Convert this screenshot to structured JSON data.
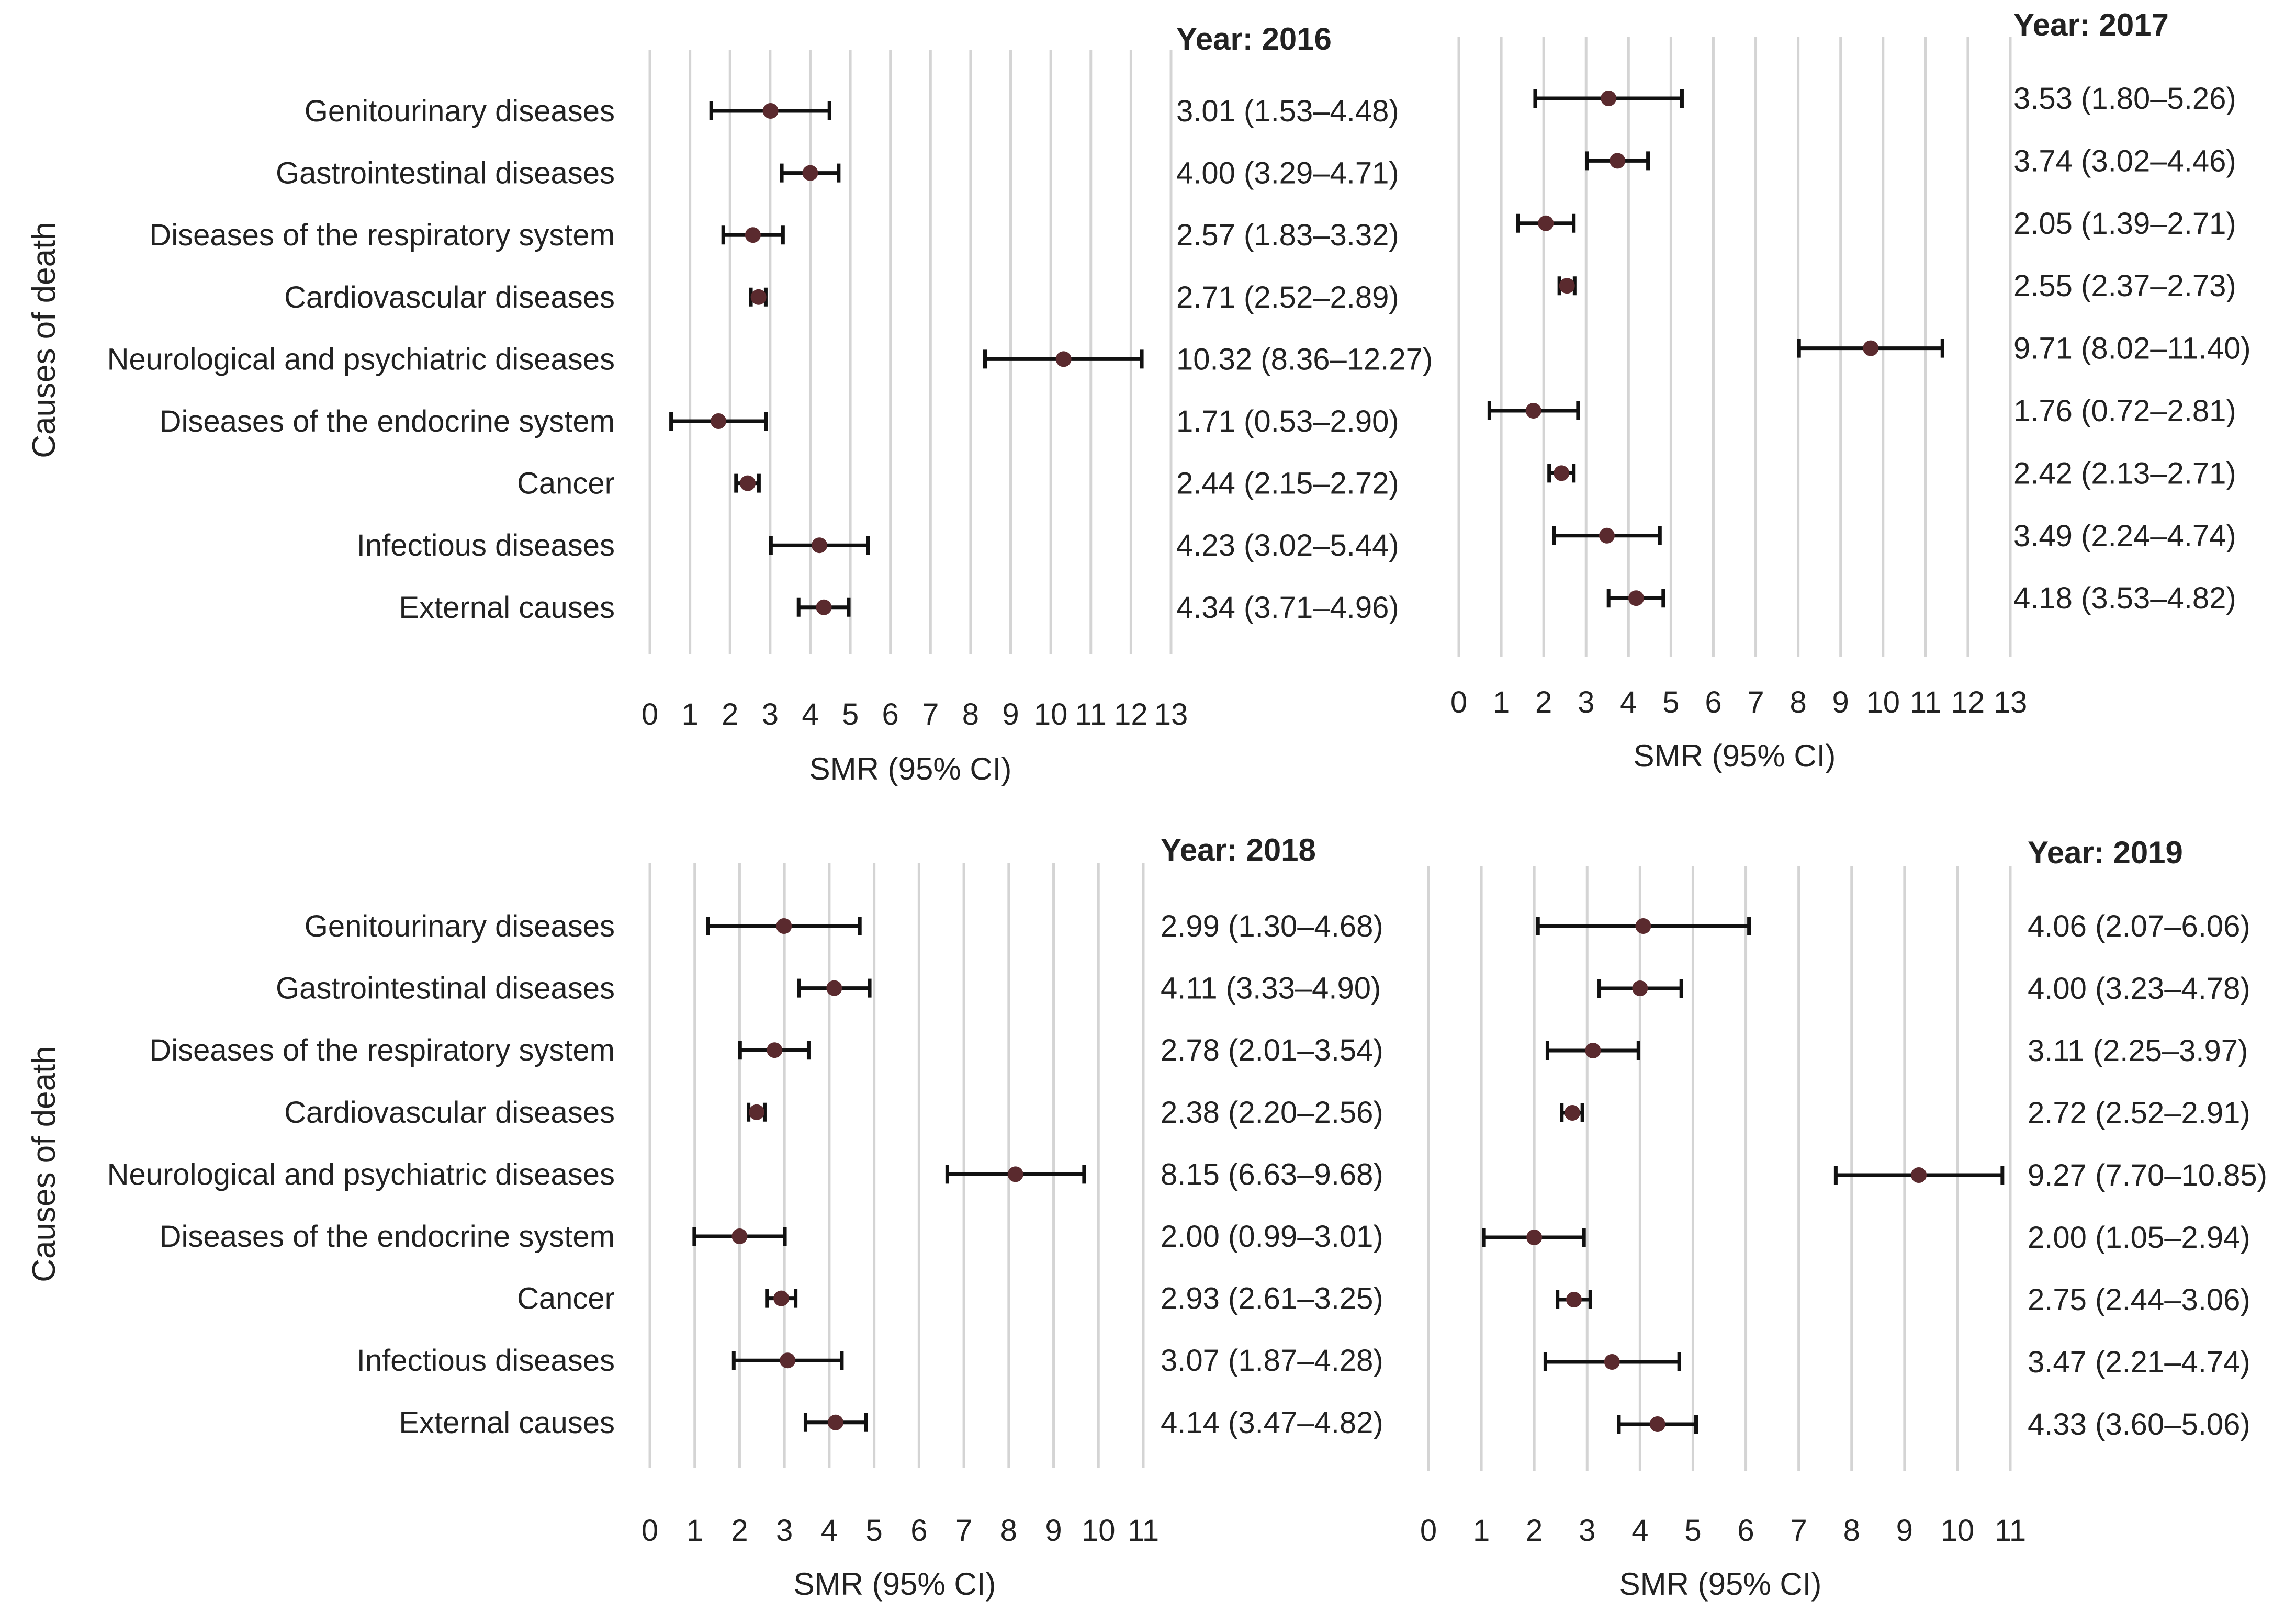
{
  "chart_data": [
    {
      "type": "forest",
      "title": "Year: 2016",
      "xlabel": "SMR (95% CI)",
      "ylabel": "Causes of death",
      "xlim": [
        0,
        13
      ],
      "xticks": [
        "0",
        "1",
        "2",
        "3",
        "4",
        "5",
        "6",
        "7",
        "8",
        "9",
        "10",
        "11",
        "12",
        "13"
      ],
      "grid": true,
      "categories": [
        "Genitourinary diseases",
        "Gastrointestinal diseases",
        "Diseases of the respiratory system",
        "Cardiovascular diseases",
        "Neurological and psychiatric diseases",
        "Diseases of the endocrine system",
        "Cancer",
        "Infectious diseases",
        "External causes"
      ],
      "smr": [
        3.01,
        4.0,
        2.57,
        2.71,
        10.32,
        1.71,
        2.44,
        4.23,
        4.34
      ],
      "lower": [
        1.53,
        3.29,
        1.83,
        2.52,
        8.36,
        0.53,
        2.15,
        3.02,
        3.71
      ],
      "upper": [
        4.48,
        4.71,
        3.32,
        2.89,
        12.27,
        2.9,
        2.72,
        5.44,
        4.96
      ],
      "labels": [
        "3.01 (1.53–4.48)",
        "4.00 (3.29–4.71)",
        "2.57 (1.83–3.32)",
        "2.71 (2.52–2.89)",
        "10.32 (8.36–12.27)",
        "1.71 (0.53–2.90)",
        "2.44 (2.15–2.72)",
        "4.23 (3.02–5.44)",
        "4.34 (3.71–4.96)"
      ]
    },
    {
      "type": "forest",
      "title": "Year: 2017",
      "xlabel": "SMR (95% CI)",
      "ylabel": "",
      "xlim": [
        0,
        13
      ],
      "xticks": [
        "0",
        "1",
        "2",
        "3",
        "4",
        "5",
        "6",
        "7",
        "8",
        "9",
        "10",
        "11",
        "12",
        "13"
      ],
      "grid": true,
      "categories": [],
      "smr": [
        3.53,
        3.74,
        2.05,
        2.55,
        9.71,
        1.76,
        2.42,
        3.49,
        4.18
      ],
      "lower": [
        1.8,
        3.02,
        1.39,
        2.37,
        8.02,
        0.72,
        2.13,
        2.24,
        3.53
      ],
      "upper": [
        5.26,
        4.46,
        2.71,
        2.73,
        11.4,
        2.81,
        2.71,
        4.74,
        4.82
      ],
      "labels": [
        "3.53 (1.80–5.26)",
        "3.74 (3.02–4.46)",
        "2.05 (1.39–2.71)",
        "2.55 (2.37–2.73)",
        "9.71 (8.02–11.40)",
        "1.76 (0.72–2.81)",
        "2.42 (2.13–2.71)",
        "3.49 (2.24–4.74)",
        "4.18 (3.53–4.82)"
      ]
    },
    {
      "type": "forest",
      "title": "Year: 2018",
      "xlabel": "SMR (95% CI)",
      "ylabel": "Causes of death",
      "xlim": [
        0,
        11
      ],
      "xticks": [
        "0",
        "1",
        "2",
        "3",
        "4",
        "5",
        "6",
        "7",
        "8",
        "9",
        "10",
        "11"
      ],
      "grid": true,
      "categories": [
        "Genitourinary diseases",
        "Gastrointestinal diseases",
        "Diseases of the respiratory system",
        "Cardiovascular diseases",
        "Neurological and psychiatric diseases",
        "Diseases of the endocrine system",
        "Cancer",
        "Infectious diseases",
        "External causes"
      ],
      "smr": [
        2.99,
        4.11,
        2.78,
        2.38,
        8.15,
        2.0,
        2.93,
        3.07,
        4.14
      ],
      "lower": [
        1.3,
        3.33,
        2.01,
        2.2,
        6.63,
        0.99,
        2.61,
        1.87,
        3.47
      ],
      "upper": [
        4.68,
        4.9,
        3.54,
        2.56,
        9.68,
        3.01,
        3.25,
        4.28,
        4.82
      ],
      "labels": [
        "2.99 (1.30–4.68)",
        "4.11 (3.33–4.90)",
        "2.78 (2.01–3.54)",
        "2.38 (2.20–2.56)",
        "8.15 (6.63–9.68)",
        "2.00 (0.99–3.01)",
        "2.93 (2.61–3.25)",
        "3.07 (1.87–4.28)",
        "4.14 (3.47–4.82)"
      ]
    },
    {
      "type": "forest",
      "title": "Year: 2019",
      "xlabel": "SMR (95% CI)",
      "ylabel": "",
      "xlim": [
        0,
        11
      ],
      "xticks": [
        "0",
        "1",
        "2",
        "3",
        "4",
        "5",
        "6",
        "7",
        "8",
        "9",
        "10",
        "11"
      ],
      "grid": true,
      "categories": [],
      "smr": [
        4.06,
        4.0,
        3.11,
        2.72,
        9.27,
        2.0,
        2.75,
        3.47,
        4.33
      ],
      "lower": [
        2.07,
        3.23,
        2.25,
        2.52,
        7.7,
        1.05,
        2.44,
        2.21,
        3.6
      ],
      "upper": [
        6.06,
        4.78,
        3.97,
        2.91,
        10.85,
        2.94,
        3.06,
        4.74,
        5.06
      ],
      "labels": [
        "4.06 (2.07–6.06)",
        "4.00 (3.23–4.78)",
        "3.11 (2.25–3.97)",
        "2.72 (2.52–2.91)",
        "9.27 (7.70–10.85)",
        "2.00 (1.05–2.94)",
        "2.75 (2.44–3.06)",
        "3.47 (2.21–4.74)",
        "4.33 (3.60–5.06)"
      ]
    }
  ],
  "colors": {
    "marker": "#5a2a2e",
    "whisker": "#111111",
    "grid": "#d4d4d4",
    "text": "#222222"
  }
}
